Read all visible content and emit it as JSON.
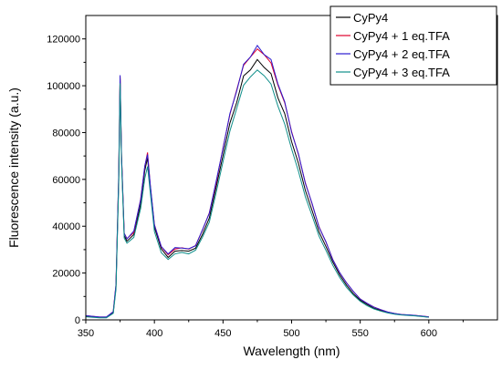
{
  "chart_data": {
    "type": "line",
    "title": "",
    "xlabel": "Wavelength (nm)",
    "ylabel": "Fluorescence intensity (a.u.)",
    "xlim": [
      350,
      650
    ],
    "ylim": [
      0,
      130000
    ],
    "x_ticks": [
      350,
      400,
      450,
      500,
      550,
      600
    ],
    "x_tick_labels": [
      "350",
      "400",
      "450",
      "500",
      "550",
      "600"
    ],
    "y_ticks": [
      0,
      20000,
      40000,
      60000,
      80000,
      100000,
      120000
    ],
    "y_tick_labels": [
      "0",
      "20000",
      "40000",
      "60000",
      "80000",
      "100000",
      "120000"
    ],
    "grid": false,
    "legend_position": "top-right",
    "series": [
      {
        "name": "CyPy4",
        "color": "#000000",
        "x": [
          350,
          360,
          365,
          370,
          372,
          374,
          375,
          376,
          378,
          380,
          385,
          390,
          393,
          395,
          397,
          400,
          405,
          410,
          415,
          420,
          425,
          430,
          435,
          440,
          445,
          450,
          455,
          460,
          465,
          470,
          475,
          480,
          485,
          490,
          495,
          500,
          505,
          510,
          515,
          520,
          525,
          530,
          535,
          540,
          545,
          550,
          555,
          560,
          565,
          570,
          575,
          580,
          585,
          590,
          595,
          600
        ],
        "y": [
          1500,
          1000,
          1000,
          3000,
          14000,
          60000,
          103000,
          70000,
          36000,
          34000,
          36000,
          50000,
          63000,
          70000,
          56000,
          40000,
          30000,
          27000,
          29000,
          30000,
          29000,
          31000,
          36000,
          44000,
          56000,
          71000,
          83000,
          94000,
          103000,
          108000,
          110000,
          109000,
          104000,
          96000,
          87000,
          77000,
          66000,
          56000,
          46000,
          38000,
          31000,
          25000,
          19000,
          15000,
          11000,
          8500,
          6500,
          5000,
          4000,
          3200,
          2500,
          2200,
          2000,
          1800,
          1500,
          1200
        ]
      },
      {
        "name": "CyPy4 + 1 eq.TFA",
        "color": "#e0002a",
        "x": [
          350,
          360,
          365,
          370,
          372,
          374,
          375,
          376,
          378,
          380,
          385,
          390,
          393,
          395,
          397,
          400,
          405,
          410,
          415,
          420,
          425,
          430,
          435,
          440,
          445,
          450,
          455,
          460,
          465,
          470,
          475,
          480,
          485,
          490,
          495,
          500,
          505,
          510,
          515,
          520,
          525,
          530,
          535,
          540,
          545,
          550,
          555,
          560,
          565,
          570,
          575,
          580,
          585,
          590,
          595,
          600
        ],
        "y": [
          1800,
          1200,
          1200,
          3500,
          15000,
          62000,
          104000,
          71000,
          37000,
          35000,
          37000,
          52000,
          65000,
          72000,
          57000,
          41000,
          31000,
          28000,
          30000,
          31000,
          30000,
          32000,
          38000,
          46000,
          58000,
          74000,
          87000,
          99000,
          108000,
          113000,
          115000,
          114000,
          109000,
          101000,
          92000,
          81000,
          70000,
          59000,
          49000,
          40000,
          33000,
          26000,
          20000,
          16000,
          12000,
          9000,
          7000,
          5500,
          4300,
          3400,
          2700,
          2300,
          2100,
          1900,
          1600,
          1300
        ]
      },
      {
        "name": "CyPy4 + 2 eq.TFA",
        "color": "#2a1ad0",
        "x": [
          350,
          360,
          365,
          370,
          372,
          374,
          375,
          376,
          378,
          380,
          385,
          390,
          393,
          395,
          397,
          400,
          405,
          410,
          415,
          420,
          425,
          430,
          435,
          440,
          445,
          450,
          455,
          460,
          465,
          470,
          475,
          480,
          485,
          490,
          495,
          500,
          505,
          510,
          515,
          520,
          525,
          530,
          535,
          540,
          545,
          550,
          555,
          560,
          565,
          570,
          575,
          580,
          585,
          590,
          595,
          600
        ],
        "y": [
          1800,
          1200,
          1200,
          3500,
          15000,
          62000,
          104500,
          71000,
          37000,
          35000,
          37500,
          52000,
          65000,
          71500,
          57000,
          41000,
          31000,
          28500,
          30500,
          31000,
          30000,
          32000,
          38000,
          46000,
          58500,
          74000,
          87000,
          99000,
          108000,
          113500,
          116000,
          114500,
          110000,
          102000,
          92000,
          81000,
          70000,
          59000,
          49000,
          40000,
          33000,
          26000,
          20000,
          16000,
          12000,
          9000,
          7000,
          5500,
          4300,
          3400,
          2700,
          2300,
          2100,
          1900,
          1600,
          1300
        ]
      },
      {
        "name": "CyPy4 + 3 eq.TFA",
        "color": "#0f8f8a",
        "x": [
          350,
          360,
          365,
          370,
          372,
          374,
          375,
          376,
          378,
          380,
          385,
          390,
          393,
          395,
          397,
          400,
          405,
          410,
          415,
          420,
          425,
          430,
          435,
          440,
          445,
          450,
          455,
          460,
          465,
          470,
          475,
          480,
          485,
          490,
          495,
          500,
          505,
          510,
          515,
          520,
          525,
          530,
          535,
          540,
          545,
          550,
          555,
          560,
          565,
          570,
          575,
          580,
          585,
          590,
          595,
          600
        ],
        "y": [
          1300,
          900,
          900,
          2800,
          13000,
          58000,
          101000,
          68000,
          35000,
          33000,
          35000,
          48000,
          60000,
          66000,
          54000,
          38000,
          28500,
          26000,
          28000,
          29000,
          28000,
          30000,
          35000,
          42000,
          54000,
          68000,
          80000,
          91000,
          99500,
          104500,
          106000,
          105000,
          100000,
          92000,
          83000,
          73500,
          63000,
          53000,
          44000,
          36000,
          29500,
          23500,
          18000,
          14000,
          10500,
          8000,
          6000,
          4700,
          3700,
          3000,
          2400,
          2100,
          1900,
          1700,
          1400,
          1100
        ]
      }
    ]
  }
}
